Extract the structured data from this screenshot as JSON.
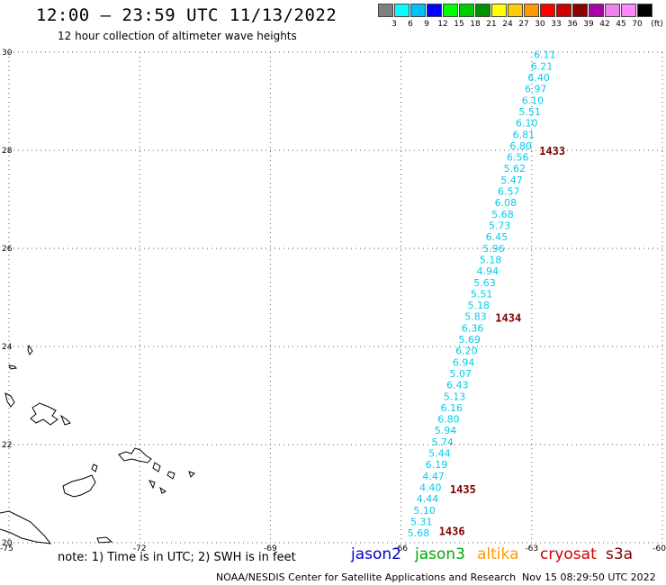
{
  "header": {
    "title": "12:00 – 23:59 UTC 11/13/2022",
    "subtitle": "12 hour collection of altimeter wave heights"
  },
  "legend": {
    "colors": [
      "#808080",
      "#00ffff",
      "#00c0ff",
      "#0000ff",
      "#00ff00",
      "#00cc00",
      "#009000",
      "#ffff00",
      "#ffcc00",
      "#ff9900",
      "#ff0000",
      "#cc0000",
      "#8b0000",
      "#aa00aa",
      "#ee82ee",
      "#ff88ff",
      "#000000"
    ],
    "labels": [
      "3",
      "6",
      "9",
      "12",
      "15",
      "18",
      "21",
      "24",
      "27",
      "30",
      "33",
      "36",
      "39",
      "42",
      "45",
      "70"
    ],
    "unit": "(ft)"
  },
  "map": {
    "lon_range": [
      -75,
      -60
    ],
    "lat_range": [
      20,
      30
    ],
    "lon_ticks": [
      "-75",
      "-72",
      "-69",
      "-66",
      "-63",
      "-60"
    ],
    "lat_ticks": [
      "30",
      "28",
      "26",
      "24",
      "22",
      "20"
    ],
    "grid": true
  },
  "track": {
    "color": "#00ccee",
    "values": [
      "6.11",
      "6.21",
      "6.40",
      "6.97",
      "6.10",
      "5.51",
      "6.10",
      "6.81",
      "6.80",
      "6.56",
      "5.62",
      "5.47",
      "6.57",
      "6.08",
      "5.68",
      "5.73",
      "6.45",
      "5.96",
      "5.18",
      "4.94",
      "5.63",
      "5.51",
      "5.18",
      "5.83",
      "6.36",
      "5.69",
      "6.20",
      "6.94",
      "5.07",
      "6.43",
      "5.13",
      "6.16",
      "6.80",
      "5.94",
      "5.74",
      "5.44",
      "6.19",
      "4.47",
      "4.40",
      "4.44",
      "5.10",
      "5.31",
      "5.68"
    ],
    "time_labels": [
      {
        "text": "1433",
        "lat": 28.0
      },
      {
        "text": "1434",
        "lat": 24.6
      },
      {
        "text": "1435",
        "lat": 21.1
      },
      {
        "text": "1436",
        "lat": 20.25
      }
    ],
    "time_color": "#800000"
  },
  "footer": {
    "note": "note: 1) Time is in UTC; 2) SWH is in feet",
    "satellites": [
      {
        "name": "jason2",
        "color": "#0000cc"
      },
      {
        "name": "jason3",
        "color": "#00aa00"
      },
      {
        "name": "altika",
        "color": "#ff9900"
      },
      {
        "name": "cryosat",
        "color": "#cc0000"
      },
      {
        "name": "s3a",
        "color": "#800000"
      }
    ],
    "credit": "NOAA/NESDIS Center for Satellite Applications and Research",
    "timestamp": "Nov 15 08:29:50 UTC 2022"
  }
}
